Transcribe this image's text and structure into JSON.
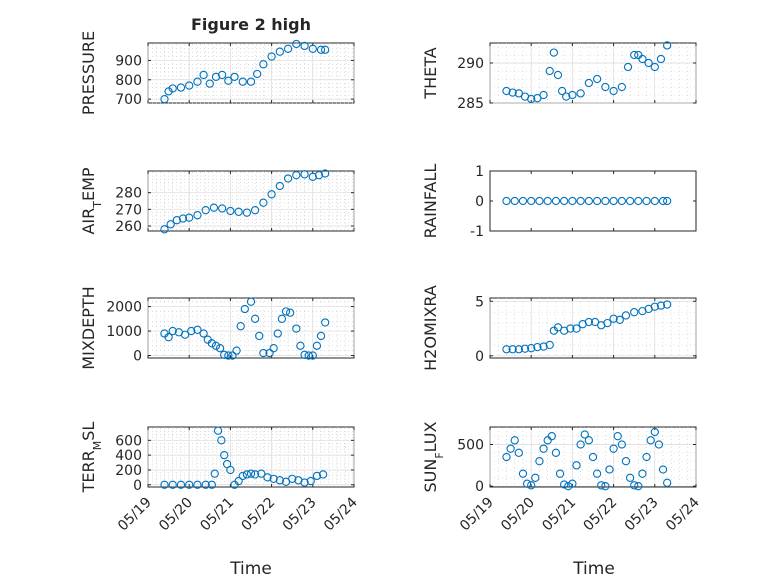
{
  "figure": {
    "title": "Figure 2 high",
    "xlabel": "Time"
  },
  "chart_data": [
    {
      "type": "scatter",
      "ylabel": "PRESSURE",
      "ylim": [
        680,
        990
      ],
      "yticks": [
        700,
        800,
        900
      ],
      "grid": true,
      "xlim": [
        "05/19",
        "05/24"
      ],
      "xticks": [
        "05/19",
        "05/20",
        "05/21",
        "05/22",
        "05/23",
        "05/24"
      ],
      "x": [
        19.4,
        19.5,
        19.6,
        19.8,
        20.0,
        20.2,
        20.35,
        20.5,
        20.65,
        20.8,
        20.95,
        21.1,
        21.3,
        21.5,
        21.65,
        21.8,
        22.0,
        22.2,
        22.4,
        22.6,
        22.8,
        23.0,
        23.2,
        23.3
      ],
      "y": [
        700,
        740,
        755,
        760,
        770,
        790,
        825,
        780,
        815,
        825,
        795,
        815,
        790,
        790,
        830,
        880,
        920,
        945,
        960,
        985,
        975,
        960,
        955,
        955
      ]
    },
    {
      "type": "scatter",
      "ylabel": "THETA",
      "ylim": [
        285,
        292.5
      ],
      "yticks": [
        285,
        290
      ],
      "grid": true,
      "xlim": [
        "05/19",
        "05/24"
      ],
      "xticks": [
        "05/19",
        "05/20",
        "05/21",
        "05/22",
        "05/23",
        "05/24"
      ],
      "x": [
        19.4,
        19.55,
        19.7,
        19.85,
        20.0,
        20.15,
        20.3,
        20.45,
        20.55,
        20.65,
        20.75,
        20.85,
        21.0,
        21.2,
        21.4,
        21.6,
        21.8,
        22.0,
        22.2,
        22.35,
        22.5,
        22.6,
        22.7,
        22.85,
        23.0,
        23.15,
        23.3
      ],
      "y": [
        286.5,
        286.3,
        286.2,
        285.8,
        285.5,
        285.6,
        286.0,
        289.0,
        291.3,
        288.5,
        286.5,
        285.8,
        286.0,
        286.2,
        287.5,
        288.0,
        287.0,
        286.5,
        287.0,
        289.5,
        291.0,
        291.0,
        290.5,
        290.0,
        289.5,
        290.5,
        292.2
      ]
    },
    {
      "type": "scatter",
      "ylabel": "AIR_TEMP",
      "ylim": [
        257,
        293
      ],
      "yticks": [
        260,
        270,
        280
      ],
      "grid": true,
      "xlim": [
        "05/19",
        "05/24"
      ],
      "xticks": [
        "05/19",
        "05/20",
        "05/21",
        "05/22",
        "05/23",
        "05/24"
      ],
      "x": [
        19.4,
        19.55,
        19.7,
        19.85,
        20.0,
        20.2,
        20.4,
        20.6,
        20.8,
        21.0,
        21.2,
        21.4,
        21.6,
        21.8,
        22.0,
        22.2,
        22.4,
        22.6,
        22.8,
        23.0,
        23.15,
        23.3
      ],
      "y": [
        258,
        261,
        263.5,
        264.5,
        265,
        266.5,
        269.5,
        271,
        270.5,
        269,
        268.5,
        268,
        269.5,
        274,
        279,
        284,
        288.5,
        290.5,
        291,
        289.5,
        290.5,
        291.5
      ]
    },
    {
      "type": "scatter",
      "ylabel": "RAINFALL",
      "ylim": [
        -1,
        1
      ],
      "yticks": [
        -1,
        0,
        1
      ],
      "grid": false,
      "xlim": [
        "05/19",
        "05/24"
      ],
      "xticks": [
        "05/19",
        "05/20",
        "05/21",
        "05/22",
        "05/23",
        "05/24"
      ],
      "x": [
        19.4,
        19.6,
        19.8,
        20.0,
        20.2,
        20.4,
        20.6,
        20.8,
        21.0,
        21.2,
        21.4,
        21.6,
        21.8,
        22.0,
        22.2,
        22.4,
        22.6,
        22.8,
        23.0,
        23.2,
        23.3
      ],
      "y": [
        0,
        0,
        0,
        0,
        0,
        0,
        0,
        0,
        0,
        0,
        0,
        0,
        0,
        0,
        0,
        0,
        0,
        0,
        0,
        0,
        0
      ]
    },
    {
      "type": "scatter",
      "ylabel": "MIXDEPTH",
      "ylim": [
        -100,
        2350
      ],
      "yticks": [
        0,
        1000,
        2000
      ],
      "grid": true,
      "xlim": [
        "05/19",
        "05/24"
      ],
      "xticks": [
        "05/19",
        "05/20",
        "05/21",
        "05/22",
        "05/23",
        "05/24"
      ],
      "x": [
        19.4,
        19.5,
        19.6,
        19.75,
        19.9,
        20.05,
        20.2,
        20.35,
        20.45,
        20.55,
        20.65,
        20.75,
        20.85,
        20.95,
        21.05,
        21.15,
        21.25,
        21.35,
        21.5,
        21.6,
        21.7,
        21.8,
        21.95,
        22.05,
        22.15,
        22.25,
        22.35,
        22.45,
        22.6,
        22.7,
        22.8,
        22.9,
        23.0,
        23.1,
        23.2,
        23.3
      ],
      "y": [
        900,
        750,
        1000,
        950,
        850,
        1000,
        1050,
        900,
        650,
        500,
        400,
        300,
        30,
        0,
        0,
        200,
        1200,
        1900,
        2200,
        1500,
        800,
        100,
        100,
        300,
        900,
        1500,
        1800,
        1750,
        1100,
        400,
        30,
        0,
        0,
        400,
        800,
        1350
      ]
    },
    {
      "type": "scatter",
      "ylabel": "H2OMIXRA",
      "ylim": [
        -0.2,
        5.3
      ],
      "yticks": [
        0,
        5
      ],
      "grid": true,
      "xlim": [
        "05/19",
        "05/24"
      ],
      "xticks": [
        "05/19",
        "05/20",
        "05/21",
        "05/22",
        "05/23",
        "05/24"
      ],
      "x": [
        19.4,
        19.55,
        19.7,
        19.85,
        20.0,
        20.15,
        20.3,
        20.45,
        20.55,
        20.65,
        20.8,
        20.95,
        21.1,
        21.25,
        21.4,
        21.55,
        21.7,
        21.85,
        22.0,
        22.15,
        22.3,
        22.5,
        22.7,
        22.85,
        23.0,
        23.15,
        23.3
      ],
      "y": [
        0.6,
        0.6,
        0.6,
        0.65,
        0.7,
        0.8,
        0.85,
        1.0,
        2.3,
        2.6,
        2.3,
        2.5,
        2.5,
        2.9,
        3.1,
        3.1,
        2.8,
        3.0,
        3.4,
        3.3,
        3.7,
        4.0,
        4.1,
        4.3,
        4.5,
        4.6,
        4.7
      ]
    },
    {
      "type": "scatter",
      "ylabel": "TERR_MSL",
      "ylim": [
        -30,
        780
      ],
      "yticks": [
        0,
        200,
        400,
        600
      ],
      "grid": true,
      "xlim": [
        "05/19",
        "05/24"
      ],
      "xticks": [
        "05/19",
        "05/20",
        "05/21",
        "05/22",
        "05/23",
        "05/24"
      ],
      "x": [
        19.4,
        19.6,
        19.8,
        20.0,
        20.2,
        20.4,
        20.55,
        20.62,
        20.7,
        20.78,
        20.85,
        20.92,
        21.0,
        21.1,
        21.2,
        21.3,
        21.4,
        21.5,
        21.6,
        21.75,
        21.9,
        22.05,
        22.2,
        22.35,
        22.5,
        22.65,
        22.8,
        22.95,
        23.1,
        23.25
      ],
      "y": [
        0,
        0,
        0,
        0,
        0,
        0,
        0,
        150,
        730,
        600,
        400,
        280,
        200,
        0,
        50,
        120,
        140,
        150,
        140,
        150,
        100,
        80,
        60,
        40,
        80,
        60,
        30,
        50,
        120,
        140
      ]
    },
    {
      "type": "scatter",
      "ylabel": "SUN_FLUX",
      "ylim": [
        -10,
        710
      ],
      "yticks": [
        0,
        500
      ],
      "grid": true,
      "xlim": [
        "05/19",
        "05/24"
      ],
      "xticks": [
        "05/19",
        "05/20",
        "05/21",
        "05/22",
        "05/23",
        "05/24"
      ],
      "x": [
        19.4,
        19.5,
        19.6,
        19.7,
        19.8,
        19.9,
        20.0,
        20.1,
        20.2,
        20.3,
        20.4,
        20.5,
        20.6,
        20.7,
        20.8,
        20.9,
        21.0,
        21.1,
        21.2,
        21.3,
        21.4,
        21.5,
        21.6,
        21.7,
        21.8,
        21.9,
        22.0,
        22.1,
        22.2,
        22.3,
        22.4,
        22.5,
        22.6,
        22.7,
        22.8,
        22.9,
        23.0,
        23.1,
        23.2,
        23.3
      ],
      "y": [
        350,
        450,
        550,
        400,
        150,
        30,
        10,
        100,
        300,
        450,
        550,
        600,
        400,
        150,
        20,
        0,
        30,
        250,
        500,
        620,
        550,
        350,
        150,
        10,
        0,
        200,
        450,
        600,
        500,
        300,
        100,
        10,
        0,
        150,
        350,
        550,
        650,
        500,
        200,
        40
      ]
    }
  ]
}
